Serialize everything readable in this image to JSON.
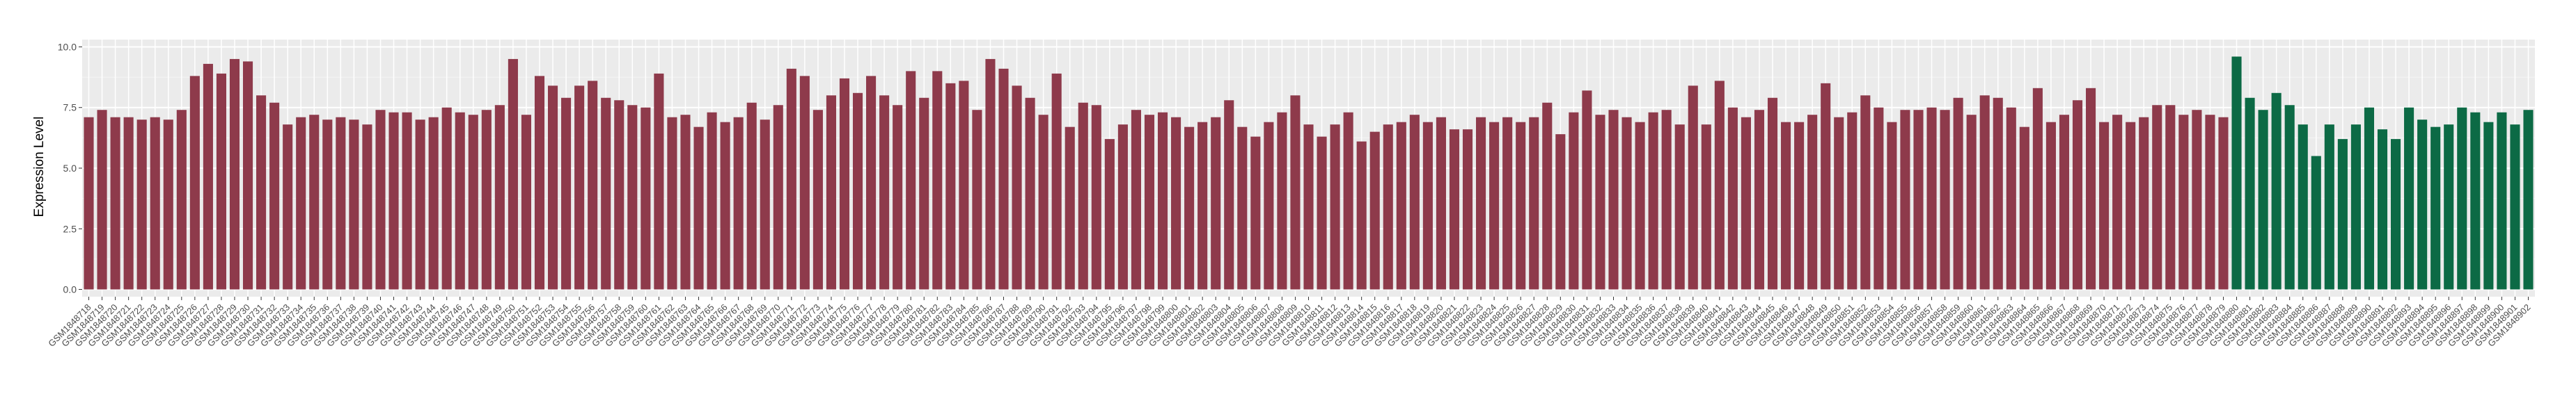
{
  "chart_data": {
    "type": "bar",
    "ylabel": "Expression Level",
    "categories": [
      "GSM1848718",
      "GSM1848719",
      "GSM1848720",
      "GSM1848721",
      "GSM1848722",
      "GSM1848723",
      "GSM1848724",
      "GSM1848725",
      "GSM1848726",
      "GSM1848727",
      "GSM1848728",
      "GSM1848729",
      "GSM1848730",
      "GSM1848731",
      "GSM1848732",
      "GSM1848733",
      "GSM1848734",
      "GSM1848735",
      "GSM1848736",
      "GSM1848737",
      "GSM1848738",
      "GSM1848739",
      "GSM1848740",
      "GSM1848741",
      "GSM1848742",
      "GSM1848743",
      "GSM1848744",
      "GSM1848745",
      "GSM1848746",
      "GSM1848747",
      "GSM1848748",
      "GSM1848749",
      "GSM1848750",
      "GSM1848751",
      "GSM1848752",
      "GSM1848753",
      "GSM1848754",
      "GSM1848755",
      "GSM1848756",
      "GSM1848757",
      "GSM1848758",
      "GSM1848759",
      "GSM1848760",
      "GSM1848761",
      "GSM1848762",
      "GSM1848763",
      "GSM1848764",
      "GSM1848765",
      "GSM1848766",
      "GSM1848767",
      "GSM1848768",
      "GSM1848769",
      "GSM1848770",
      "GSM1848771",
      "GSM1848772",
      "GSM1848773",
      "GSM1848774",
      "GSM1848775",
      "GSM1848776",
      "GSM1848777",
      "GSM1848778",
      "GSM1848779",
      "GSM1848780",
      "GSM1848781",
      "GSM1848782",
      "GSM1848783",
      "GSM1848784",
      "GSM1848785",
      "GSM1848786",
      "GSM1848787",
      "GSM1848788",
      "GSM1848789",
      "GSM1848790",
      "GSM1848791",
      "GSM1848792",
      "GSM1848793",
      "GSM1848794",
      "GSM1848795",
      "GSM1848796",
      "GSM1848797",
      "GSM1848798",
      "GSM1848799",
      "GSM1848800",
      "GSM1848801",
      "GSM1848802",
      "GSM1848803",
      "GSM1848804",
      "GSM1848805",
      "GSM1848806",
      "GSM1848807",
      "GSM1848808",
      "GSM1848809",
      "GSM1848810",
      "GSM1848811",
      "GSM1848812",
      "GSM1848813",
      "GSM1848814",
      "GSM1848815",
      "GSM1848816",
      "GSM1848817",
      "GSM1848818",
      "GSM1848819",
      "GSM1848820",
      "GSM1848821",
      "GSM1848822",
      "GSM1848823",
      "GSM1848824",
      "GSM1848825",
      "GSM1848826",
      "GSM1848827",
      "GSM1848828",
      "GSM1848829",
      "GSM1848830",
      "GSM1848831",
      "GSM1848832",
      "GSM1848833",
      "GSM1848834",
      "GSM1848835",
      "GSM1848836",
      "GSM1848837",
      "GSM1848838",
      "GSM1848839",
      "GSM1848840",
      "GSM1848841",
      "GSM1848842",
      "GSM1848843",
      "GSM1848844",
      "GSM1848845",
      "GSM1848846",
      "GSM1848847",
      "GSM1848848",
      "GSM1848849",
      "GSM1848850",
      "GSM1848851",
      "GSM1848852",
      "GSM1848853",
      "GSM1848854",
      "GSM1848855",
      "GSM1848856",
      "GSM1848857",
      "GSM1848858",
      "GSM1848859",
      "GSM1848860",
      "GSM1848861",
      "GSM1848862",
      "GSM1848863",
      "GSM1848864",
      "GSM1848865",
      "GSM1848866",
      "GSM1848867",
      "GSM1848868",
      "GSM1848869",
      "GSM1848870",
      "GSM1848871",
      "GSM1848872",
      "GSM1848873",
      "GSM1848874",
      "GSM1848875",
      "GSM1848876",
      "GSM1848877",
      "GSM1848878",
      "GSM1848879",
      "GSM1848880",
      "GSM1848881",
      "GSM1848882",
      "GSM1848883",
      "GSM1848884",
      "GSM1848885",
      "GSM1848886",
      "GSM1848887",
      "GSM1848888",
      "GSM1848889",
      "GSM1848890",
      "GSM1848891",
      "GSM1848892",
      "GSM1848893",
      "GSM1848894",
      "GSM1848895",
      "GSM1848896",
      "GSM1848897",
      "GSM1848898",
      "GSM1848899",
      "GSM1848900",
      "GSM1848901",
      "GSM1848902"
    ],
    "series": [
      {
        "color": "#8e3a4b",
        "values": [
          7.1,
          7.4,
          7.1,
          7.1,
          7.0,
          7.1,
          7.0,
          7.4,
          8.8,
          9.3,
          8.9,
          9.5,
          9.4,
          8.0,
          7.7,
          6.8,
          7.1,
          7.2,
          7.0,
          7.1,
          7.0,
          6.8,
          7.4,
          7.3,
          7.3,
          7.0,
          7.1,
          7.5,
          7.3,
          7.2,
          7.4,
          7.6,
          9.5,
          7.2,
          8.8,
          8.4,
          7.9,
          8.4,
          8.6,
          7.9,
          7.8,
          7.6,
          7.5,
          8.9,
          7.1,
          7.2,
          6.7,
          7.3,
          6.9,
          7.1,
          7.7,
          7.0,
          7.6,
          9.1,
          8.8,
          7.4,
          8.0,
          8.7,
          8.1,
          8.8,
          8.0,
          7.6,
          9.0,
          7.9,
          9.0,
          8.5,
          8.6,
          7.4,
          9.5,
          9.1,
          8.4,
          7.9,
          7.2,
          8.9,
          6.7,
          7.7,
          7.6,
          6.2,
          6.8,
          7.4,
          7.2,
          7.3,
          7.1,
          6.7,
          6.9,
          7.1,
          7.8,
          6.7,
          6.3,
          6.9,
          7.3,
          8.0,
          6.8,
          6.3,
          6.8,
          7.3,
          6.1,
          6.5,
          6.8,
          6.9,
          7.2,
          6.9,
          7.1,
          6.6,
          6.6,
          7.1,
          6.9,
          7.1,
          6.9,
          7.1,
          7.7,
          6.4,
          7.3,
          8.2,
          7.2,
          7.4,
          7.1,
          6.9,
          7.3,
          7.4,
          6.8,
          8.4,
          6.8,
          8.6,
          7.5,
          7.1,
          7.4,
          7.9,
          6.9,
          6.9,
          7.2,
          8.5,
          7.1,
          7.3,
          8.0,
          7.5,
          6.9,
          7.4,
          7.4,
          7.5,
          7.4,
          7.9,
          7.2,
          8.0,
          7.9,
          7.5,
          6.7,
          8.3,
          6.9,
          7.2,
          7.8,
          8.3,
          6.9,
          7.2,
          6.9,
          7.1,
          7.6,
          7.6,
          7.2,
          7.4,
          7.2,
          7.1,
          null,
          null,
          null,
          null,
          null,
          null,
          null,
          null,
          null,
          null,
          null,
          null,
          null,
          null,
          null,
          null,
          null,
          null,
          null,
          null,
          null,
          null,
          null
        ]
      },
      {
        "color": "#0c6a45",
        "values": [
          null,
          null,
          null,
          null,
          null,
          null,
          null,
          null,
          null,
          null,
          null,
          null,
          null,
          null,
          null,
          null,
          null,
          null,
          null,
          null,
          null,
          null,
          null,
          null,
          null,
          null,
          null,
          null,
          null,
          null,
          null,
          null,
          null,
          null,
          null,
          null,
          null,
          null,
          null,
          null,
          null,
          null,
          null,
          null,
          null,
          null,
          null,
          null,
          null,
          null,
          null,
          null,
          null,
          null,
          null,
          null,
          null,
          null,
          null,
          null,
          null,
          null,
          null,
          null,
          null,
          null,
          null,
          null,
          null,
          null,
          null,
          null,
          null,
          null,
          null,
          null,
          null,
          null,
          null,
          null,
          null,
          null,
          null,
          null,
          null,
          null,
          null,
          null,
          null,
          null,
          null,
          null,
          null,
          null,
          null,
          null,
          null,
          null,
          null,
          null,
          null,
          null,
          null,
          null,
          null,
          null,
          null,
          null,
          null,
          null,
          null,
          null,
          null,
          null,
          null,
          null,
          null,
          null,
          null,
          null,
          null,
          null,
          null,
          null,
          null,
          null,
          null,
          null,
          null,
          null,
          null,
          null,
          null,
          null,
          null,
          null,
          null,
          null,
          null,
          null,
          null,
          null,
          null,
          null,
          null,
          null,
          null,
          null,
          null,
          null,
          null,
          null,
          null,
          null,
          null,
          null,
          null,
          null,
          null,
          null,
          null,
          null,
          9.6,
          7.9,
          7.4,
          8.1,
          7.6,
          6.8,
          5.5,
          6.8,
          6.2,
          6.8,
          7.5,
          6.6,
          6.2,
          7.5,
          7.0,
          6.7,
          6.8,
          7.5,
          7.3,
          6.9,
          7.3,
          6.8,
          7.4
        ]
      }
    ],
    "ylim": [
      -0.3,
      10.3
    ],
    "yticks": [
      {
        "value": 0,
        "label": "0.0"
      },
      {
        "value": 2.5,
        "label": "2.5"
      },
      {
        "value": 5,
        "label": "5.0"
      },
      {
        "value": 7.5,
        "label": "7.5"
      },
      {
        "value": 10,
        "label": "10.0"
      }
    ],
    "grid": true
  }
}
